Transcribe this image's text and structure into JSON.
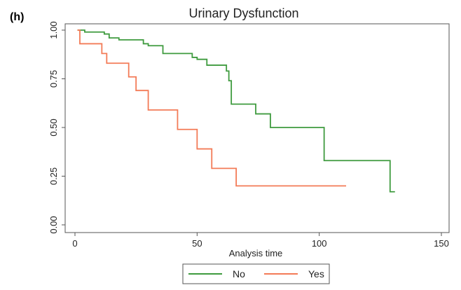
{
  "panel_label": "(h)",
  "chart_data": {
    "type": "line",
    "step": true,
    "title": "Urinary Dysfunction",
    "xlabel": "Analysis time",
    "ylabel": "",
    "xlim": [
      0,
      150
    ],
    "ylim": [
      0,
      1
    ],
    "xticks": [
      0,
      50,
      100,
      150
    ],
    "xtick_labels": [
      "0",
      "50",
      "100",
      "150"
    ],
    "yticks": [
      0,
      0.25,
      0.5,
      0.75,
      1
    ],
    "ytick_labels": [
      "0.00",
      "0.25",
      "0.50",
      "0.75",
      "1.00"
    ],
    "grid": false,
    "legend_position": "bottom",
    "series": [
      {
        "name": "No",
        "color": "#3f9b3f",
        "x": [
          1,
          4,
          12,
          14,
          18,
          28,
          30,
          36,
          48,
          50,
          54,
          62,
          63,
          64,
          65,
          74,
          80,
          102,
          129,
          131
        ],
        "y": [
          1.0,
          0.99,
          0.98,
          0.96,
          0.95,
          0.93,
          0.92,
          0.88,
          0.86,
          0.85,
          0.82,
          0.79,
          0.74,
          0.62,
          0.62,
          0.57,
          0.5,
          0.33,
          0.17,
          0.17
        ]
      },
      {
        "name": "Yes",
        "color": "#f37b57",
        "x": [
          1,
          2,
          11,
          13,
          22,
          25,
          30,
          42,
          50,
          56,
          66,
          111
        ],
        "y": [
          1.0,
          0.93,
          0.88,
          0.83,
          0.76,
          0.69,
          0.59,
          0.49,
          0.39,
          0.29,
          0.2,
          0.2
        ]
      }
    ]
  }
}
